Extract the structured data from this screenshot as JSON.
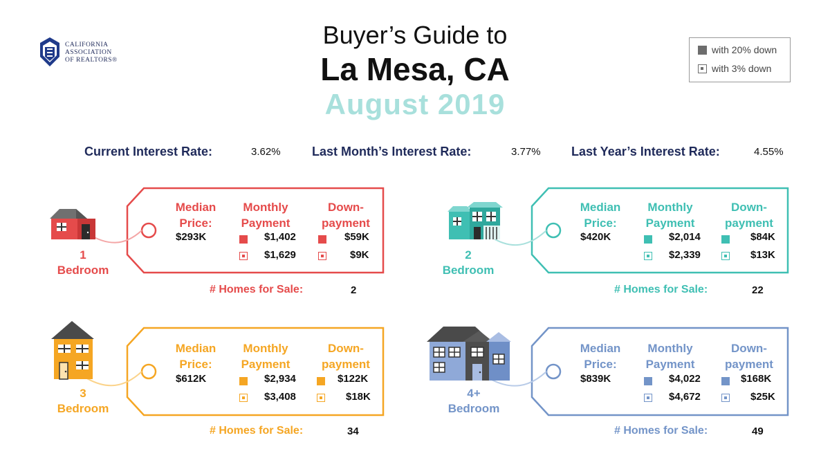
{
  "logo": {
    "line1": "CALIFORNIA",
    "line2": "ASSOCIATION",
    "line3": "OF REALTORS®",
    "icon": "car-logo-icon"
  },
  "title": {
    "line1": "Buyer’s Guide to",
    "line2": "La Mesa, CA",
    "line3": "August 2019"
  },
  "legend": {
    "solid": "with 20% down",
    "hollow": "with 3% down"
  },
  "rates": {
    "current_label": "Current Interest Rate:",
    "current_value": "3.62%",
    "last_month_label": "Last Month’s Interest Rate:",
    "last_month_value": "3.77%",
    "last_year_label": "Last Year’s Interest Rate:",
    "last_year_value": "4.55%"
  },
  "labels": {
    "median": [
      "Median",
      "Price:"
    ],
    "monthly": [
      "Monthly",
      "Payment"
    ],
    "down": [
      "Down-",
      "payment"
    ],
    "homes": "# Homes for Sale:"
  },
  "colors": {
    "b1": "#e54b4b",
    "b2": "#3fbfb3",
    "b3": "#f5a623",
    "b4": "#7394c8",
    "navy": "#1f2a5a",
    "teal_light": "#a8e0dc"
  },
  "cards": [
    {
      "bed": [
        "1",
        "Bedroom"
      ],
      "median": "$293K",
      "monthly20": "$1,402",
      "monthly3": "$1,629",
      "down20": "$59K",
      "down3": "$9K",
      "homes": "2"
    },
    {
      "bed": [
        "2",
        "Bedroom"
      ],
      "median": "$420K",
      "monthly20": "$2,014",
      "monthly3": "$2,339",
      "down20": "$84K",
      "down3": "$13K",
      "homes": "22"
    },
    {
      "bed": [
        "3",
        "Bedroom"
      ],
      "median": "$612K",
      "monthly20": "$2,934",
      "monthly3": "$3,408",
      "down20": "$122K",
      "down3": "$18K",
      "homes": "34"
    },
    {
      "bed": [
        "4+",
        "Bedroom"
      ],
      "median": "$839K",
      "monthly20": "$4,022",
      "monthly3": "$4,672",
      "down20": "$168K",
      "down3": "$25K",
      "homes": "49"
    }
  ]
}
